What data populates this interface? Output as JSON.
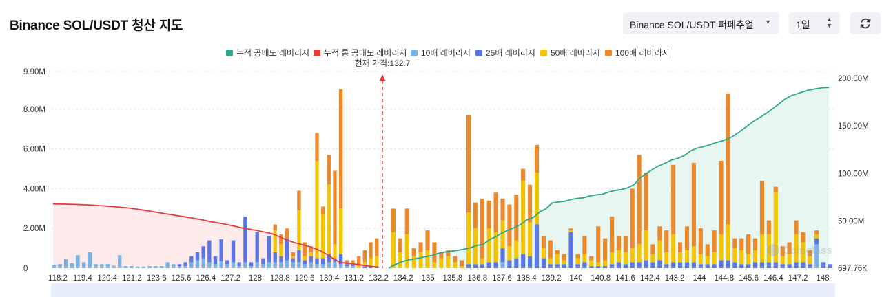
{
  "header": {
    "title": "Binance SOL/USDT 청산 지도",
    "market_select": "Binance SOL/USDT 퍼페추얼",
    "range_select": "1일"
  },
  "icons": {
    "refresh": "refresh-icon",
    "dropdown": "caret-down-icon",
    "updown": "updown-icon"
  },
  "colors": {
    "short_cum": "#2aa889",
    "long_cum": "#e83b3b",
    "lev10": "#79b4e6",
    "lev25": "#5b77e6",
    "lev50": "#f3c400",
    "lev100": "#ec8a2b",
    "scroller": "#e9eefc"
  },
  "chart_data": {
    "type": "bar",
    "title": "",
    "legend": [
      "누적 공매도 레버리지",
      "누적 롱 공매도 레버리지",
      "10배 레버리지",
      "25배 레버리지",
      "50배 레버리지",
      "100배 레버리지"
    ],
    "current_price_label": "현재 가격:132.7",
    "current_price": 132.7,
    "x_ticks": [
      "118.2",
      "119.4",
      "120.4",
      "121.2",
      "123.6",
      "125.6",
      "126.4",
      "127.2",
      "128",
      "128.8",
      "129.6",
      "130.4",
      "131.2",
      "132.2",
      "134.2",
      "135",
      "135.8",
      "136.8",
      "137.6",
      "138.4",
      "139.2",
      "140",
      "140.8",
      "141.6",
      "142.4",
      "143.2",
      "144",
      "144.8",
      "145.6",
      "146.4",
      "147.2",
      "148"
    ],
    "y_left_ticks": [
      "0",
      "2.00M",
      "4.00M",
      "6.00M",
      "8.00M",
      "9.90M"
    ],
    "y_left_range": [
      0,
      9.9
    ],
    "y_right_ticks": [
      "697.76K",
      "50.00M",
      "100.00M",
      "150.00M",
      "200.00M"
    ],
    "y_right_range": [
      0.69776,
      200
    ],
    "bars_left": [
      [
        0.15,
        0,
        0,
        0
      ],
      [
        0.2,
        0,
        0,
        0
      ],
      [
        0.45,
        0,
        0,
        0
      ],
      [
        0.25,
        0,
        0,
        0
      ],
      [
        0.65,
        0,
        0,
        0
      ],
      [
        0.3,
        0,
        0,
        0
      ],
      [
        0.8,
        0,
        0,
        0
      ],
      [
        0.2,
        0,
        0,
        0
      ],
      [
        0.2,
        0,
        0,
        0
      ],
      [
        0.2,
        0,
        0,
        0
      ],
      [
        0.12,
        0,
        0,
        0
      ],
      [
        0.65,
        0,
        0,
        0
      ],
      [
        0.1,
        0,
        0,
        0
      ],
      [
        0.1,
        0,
        0,
        0
      ],
      [
        0.08,
        0,
        0,
        0
      ],
      [
        0.08,
        0,
        0,
        0
      ],
      [
        0.1,
        0,
        0,
        0
      ],
      [
        0.1,
        0,
        0,
        0
      ],
      [
        0.1,
        0,
        0,
        0
      ],
      [
        0.3,
        0,
        0,
        0
      ],
      [
        0.2,
        0,
        0,
        0
      ],
      [
        0.1,
        0.1,
        0,
        0
      ],
      [
        0.1,
        0.2,
        0,
        0
      ],
      [
        0.3,
        0.3,
        0,
        0
      ],
      [
        0.4,
        0.4,
        0,
        0
      ],
      [
        0.5,
        0.6,
        0,
        0
      ],
      [
        0.3,
        1.1,
        0,
        0
      ],
      [
        0.2,
        0.4,
        0,
        0
      ],
      [
        0.35,
        1.1,
        0,
        0
      ],
      [
        0.2,
        0.2,
        0,
        0
      ],
      [
        0.3,
        1.1,
        0,
        0
      ],
      [
        0.1,
        0.2,
        0,
        0
      ],
      [
        0.3,
        2.3,
        0,
        0
      ],
      [
        0.1,
        0.2,
        0,
        0
      ],
      [
        0.3,
        1.5,
        0,
        0
      ],
      [
        0.2,
        0.3,
        0,
        0
      ],
      [
        0.3,
        1.3,
        0,
        0
      ],
      [
        0.3,
        0.5,
        1.1,
        0.3
      ],
      [
        0.3,
        0.3,
        0.6,
        0.5
      ],
      [
        0.4,
        1.1,
        0,
        0.5
      ],
      [
        0.3,
        0.2,
        0.1,
        0.2
      ],
      [
        0.3,
        0.6,
        2.0,
        1.0
      ],
      [
        0.2,
        0.2,
        0.2,
        0.7
      ],
      [
        0.3,
        0.3,
        0.2,
        0.3
      ],
      [
        0.2,
        0.3,
        4.9,
        1.4
      ],
      [
        0.2,
        0.3,
        2.2,
        0.4
      ],
      [
        0.3,
        0.4,
        3.5,
        1.5
      ],
      [
        0.3,
        0.2,
        0.7,
        3.7
      ],
      [
        0.2,
        0.5,
        2.3,
        6.0
      ],
      [
        0.1,
        0.1,
        0,
        0.2
      ],
      [
        0.1,
        0.1,
        0,
        0.2
      ],
      [
        0,
        0,
        0.1,
        0.5
      ],
      [
        0,
        0.1,
        0.2,
        0.6
      ],
      [
        0,
        0.1,
        0.4,
        0.8
      ],
      [
        0,
        0.1,
        0.5,
        0.9
      ]
    ],
    "bars_right": [
      [
        0,
        0,
        1.8,
        1.2
      ],
      [
        0,
        0,
        0.8,
        0.7
      ],
      [
        0,
        0,
        1.7,
        1.3
      ],
      [
        0,
        0,
        0.6,
        0.4
      ],
      [
        0,
        0,
        0.8,
        0.5
      ],
      [
        0,
        0,
        0.9,
        1.0
      ],
      [
        0,
        0,
        0.3,
        1.0
      ],
      [
        0,
        0,
        0.5,
        0.3
      ],
      [
        0,
        0,
        0.6,
        0.3
      ],
      [
        0,
        0,
        0.3,
        0.3
      ],
      [
        0,
        0,
        0.1,
        0.3
      ],
      [
        0,
        0.2,
        2.6,
        4.9
      ],
      [
        0,
        0.2,
        1.8,
        1.3
      ],
      [
        0,
        0.2,
        0.3,
        3.0
      ],
      [
        0,
        0.3,
        1.7,
        1.4
      ],
      [
        0,
        0.3,
        1.5,
        2.0
      ],
      [
        0.3,
        0.7,
        1.4,
        1.1
      ],
      [
        0,
        0.4,
        0.7,
        2.1
      ],
      [
        0,
        0.5,
        0.9,
        2.3
      ],
      [
        0,
        0.7,
        3.7,
        0.6
      ],
      [
        0,
        0.6,
        1.7,
        1.9
      ],
      [
        0,
        2.2,
        2.6,
        1.4
      ],
      [
        0,
        0.5,
        0.5,
        0.6
      ],
      [
        0,
        0.2,
        0.3,
        0.9
      ],
      [
        0,
        0.2,
        0.5,
        0.2
      ],
      [
        0,
        0.2,
        0.2,
        0.3
      ],
      [
        0,
        1.8,
        0.1,
        0.1
      ],
      [
        0,
        0.2,
        0.3,
        0.2
      ],
      [
        0,
        0.3,
        0.4,
        0.9
      ],
      [
        0,
        0.1,
        0.3,
        0.2
      ],
      [
        0,
        0.1,
        0.2,
        1.8
      ],
      [
        0,
        0.1,
        0.3,
        1.1
      ],
      [
        0,
        0.2,
        0.6,
        1.8
      ],
      [
        0,
        0.3,
        0.6,
        0.7
      ],
      [
        0,
        0.2,
        0.6,
        0.8
      ],
      [
        0,
        0.3,
        0.7,
        3.0
      ],
      [
        0,
        0.3,
        0.9,
        4.5
      ],
      [
        0,
        0.4,
        1.5,
        2.9
      ],
      [
        0,
        0.3,
        0.4,
        0.5
      ],
      [
        0,
        0.4,
        1.0,
        0.7
      ],
      [
        0,
        0.2,
        0.6,
        1.1
      ],
      [
        0,
        0.3,
        1.4,
        3.5
      ],
      [
        0,
        0.3,
        0.5,
        0.5
      ],
      [
        0,
        0.3,
        0.6,
        1.2
      ],
      [
        0,
        0.3,
        0.8,
        4.2
      ],
      [
        0,
        0.2,
        0.5,
        1.3
      ],
      [
        0,
        0.2,
        0.4,
        0.6
      ],
      [
        0,
        0.2,
        0.6,
        1.1
      ],
      [
        0,
        0.4,
        1.3,
        3.7
      ],
      [
        0,
        0.4,
        1.8,
        6.6
      ],
      [
        0,
        0.3,
        0.7,
        0.5
      ],
      [
        0,
        0.2,
        0.7,
        0.6
      ],
      [
        0,
        0.2,
        0.5,
        1.0
      ],
      [
        0,
        0.3,
        0.6,
        0.6
      ],
      [
        0,
        0.3,
        1.4,
        2.7
      ],
      [
        0,
        0.3,
        1.4,
        0.7
      ],
      [
        0,
        0.3,
        3.5,
        0.3
      ],
      [
        0,
        0.2,
        0.4,
        0.5
      ],
      [
        0,
        0.2,
        0.5,
        0.6
      ],
      [
        0,
        0.3,
        1.4,
        0.7
      ],
      [
        0,
        0.3,
        1.0,
        0.5
      ],
      [
        0,
        0.2,
        0.4,
        0.3
      ],
      [
        1.2,
        0.3,
        0.2,
        0.2
      ],
      [
        0,
        0.3,
        0,
        0
      ],
      [
        0,
        0.2,
        0,
        0
      ]
    ],
    "series_long_cum_y_right": [
      68,
      68,
      67.8,
      67.6,
      67.3,
      66.9,
      66.4,
      65.9,
      65.3,
      64.6,
      63.9,
      62.8,
      61.6,
      60.3,
      58.9,
      57.6,
      56.4,
      55.1,
      53.9,
      52.5,
      51,
      49.3,
      48,
      46.5,
      44.8,
      43,
      41.6,
      40.2,
      38.6,
      36.8,
      33.6,
      30.2,
      27.4,
      25.5,
      23.2,
      20.5,
      16.5,
      11.4,
      6.8,
      5.8,
      4.9,
      3.8,
      2.7,
      1.6
    ],
    "series_short_cum_y_right": [
      0.7,
      4.2,
      7.2,
      9.3,
      10.3,
      11.5,
      12.9,
      14.1,
      16.3,
      17.7,
      18.6,
      19.5,
      20.6,
      22,
      24.6,
      25.5,
      30.5,
      33.6,
      37.5,
      40.5,
      43.5,
      46.5,
      51.5,
      54,
      59.6,
      63,
      69,
      70.2,
      70.9,
      72.7,
      74,
      74.6,
      76.6,
      77.6,
      78.3,
      80.6,
      82.3,
      83.2,
      85,
      88.3,
      95.5,
      100.3,
      104.6,
      108.3,
      111,
      114.3,
      116.1,
      118.9,
      123.8,
      126.6,
      128.2,
      130,
      132.5,
      134.2,
      136.5,
      140.2,
      145,
      149.8,
      154.9,
      158.9,
      163,
      168,
      172.8,
      178.3,
      181.8,
      184,
      186.2,
      188,
      189.2,
      190.2,
      190.5
    ]
  }
}
